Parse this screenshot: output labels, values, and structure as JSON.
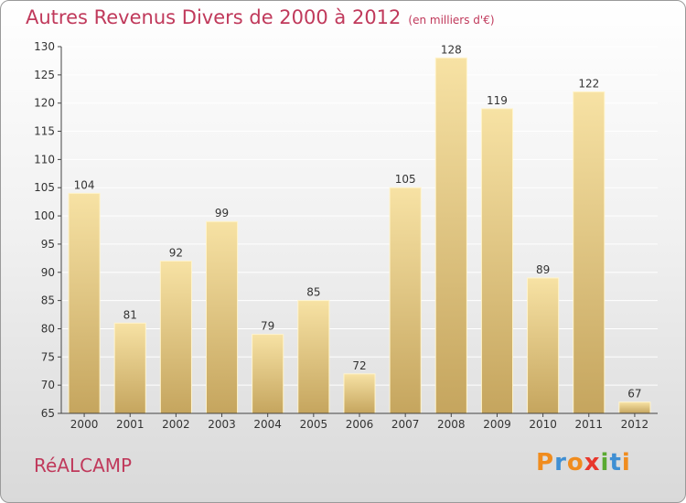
{
  "chart_data": {
    "type": "bar",
    "title": "Autres Revenus Divers de 2000 à 2012",
    "subtitle": "(en milliers d'€)",
    "categories": [
      "2000",
      "2001",
      "2002",
      "2003",
      "2004",
      "2005",
      "2006",
      "2007",
      "2008",
      "2009",
      "2010",
      "2011",
      "2012"
    ],
    "values": [
      104,
      81,
      92,
      99,
      79,
      85,
      72,
      105,
      128,
      119,
      89,
      122,
      67
    ],
    "ylim": [
      65,
      130
    ],
    "yticks": [
      65,
      70,
      75,
      80,
      85,
      90,
      95,
      100,
      105,
      110,
      115,
      120,
      125,
      130
    ],
    "grid": true,
    "bar_color": "#e5c77d",
    "bar_color_dark": "#c5a55e",
    "grid_color": "#ffffff",
    "axis_color": "#444444"
  },
  "footer": {
    "town": "RéALCAMP",
    "brand": "Proxiti",
    "brand_colors": [
      "#f08c1e",
      "#3f8fd3",
      "#f08c1e",
      "#e8372c",
      "#5aaa32",
      "#3f8fd3",
      "#f08c1e"
    ]
  }
}
